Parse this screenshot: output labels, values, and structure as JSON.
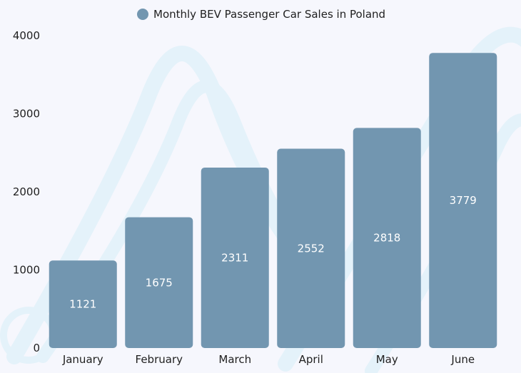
{
  "chart_data": {
    "type": "bar",
    "categories": [
      "January",
      "February",
      "March",
      "April",
      "May",
      "June"
    ],
    "series": [
      {
        "name": "Monthly BEV Passenger Car Sales in Poland",
        "values": [
          1121,
          1675,
          2311,
          2552,
          2818,
          3779
        ]
      }
    ],
    "ylim": [
      0,
      4000
    ],
    "yticks": [
      0,
      1000,
      2000,
      3000,
      4000
    ],
    "grid": false,
    "legend_position": "top",
    "data_labels": "inside-bar",
    "bar_color": "#7296b0",
    "background_color": "#f6f7fd",
    "watermark_color": "#e4f2fa"
  }
}
